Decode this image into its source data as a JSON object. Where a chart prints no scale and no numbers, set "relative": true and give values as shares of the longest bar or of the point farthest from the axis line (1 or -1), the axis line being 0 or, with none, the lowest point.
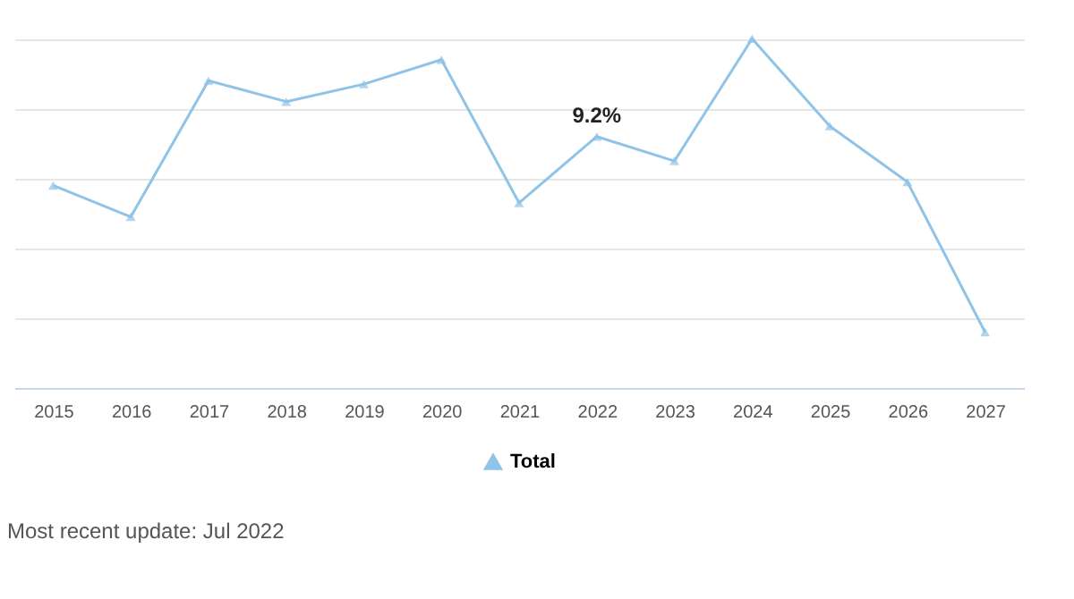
{
  "chart_data": {
    "type": "line",
    "relative": true,
    "categories": [
      "2015",
      "2016",
      "2017",
      "2018",
      "2019",
      "2020",
      "2021",
      "2022",
      "2023",
      "2024",
      "2025",
      "2026",
      "2027"
    ],
    "series": [
      {
        "name": "Total",
        "color": "#90c3e8",
        "values": [
          0.58,
          0.49,
          0.88,
          0.82,
          0.87,
          0.94,
          0.53,
          0.72,
          0.65,
          1,
          0.75,
          0.59,
          0.16
        ]
      }
    ],
    "marker": "triangle",
    "grid": "y",
    "legend": "bottom",
    "annotations": [
      {
        "text": "9.2%",
        "x": "2022",
        "y": 0.72
      },
      "Most recent update: Jul 2022"
    ]
  }
}
